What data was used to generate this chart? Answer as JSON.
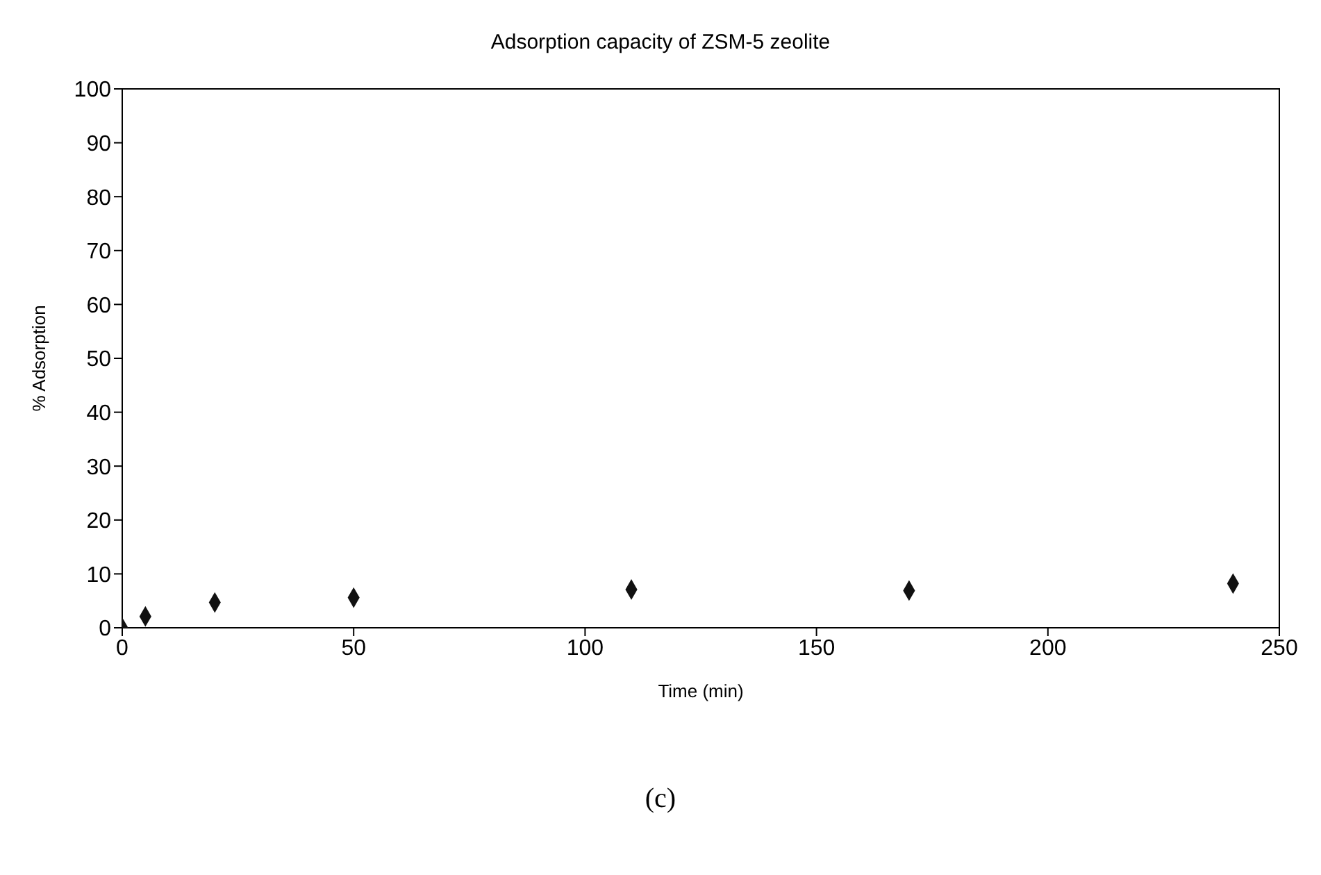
{
  "chart_data": {
    "type": "scatter",
    "title": "Adsorption capacity of ZSM-5 zeolite",
    "xlabel": "Time (min)",
    "ylabel": "% Adsorption",
    "annotations": [
      "(c)"
    ],
    "x": [
      0,
      5,
      20,
      50,
      110,
      170,
      240
    ],
    "series": [
      {
        "color": "#111111",
        "values": [
          0,
          2.1,
          4.7,
          5.6,
          7.1,
          6.9,
          8.2
        ]
      }
    ],
    "xlim": [
      0,
      250
    ],
    "xticks": [
      0,
      50,
      100,
      150,
      200,
      250
    ],
    "ylim": [
      0,
      100
    ],
    "yticks": [
      0,
      10,
      20,
      30,
      40,
      50,
      60,
      70,
      80,
      90,
      100
    ],
    "marker": "diamond"
  }
}
